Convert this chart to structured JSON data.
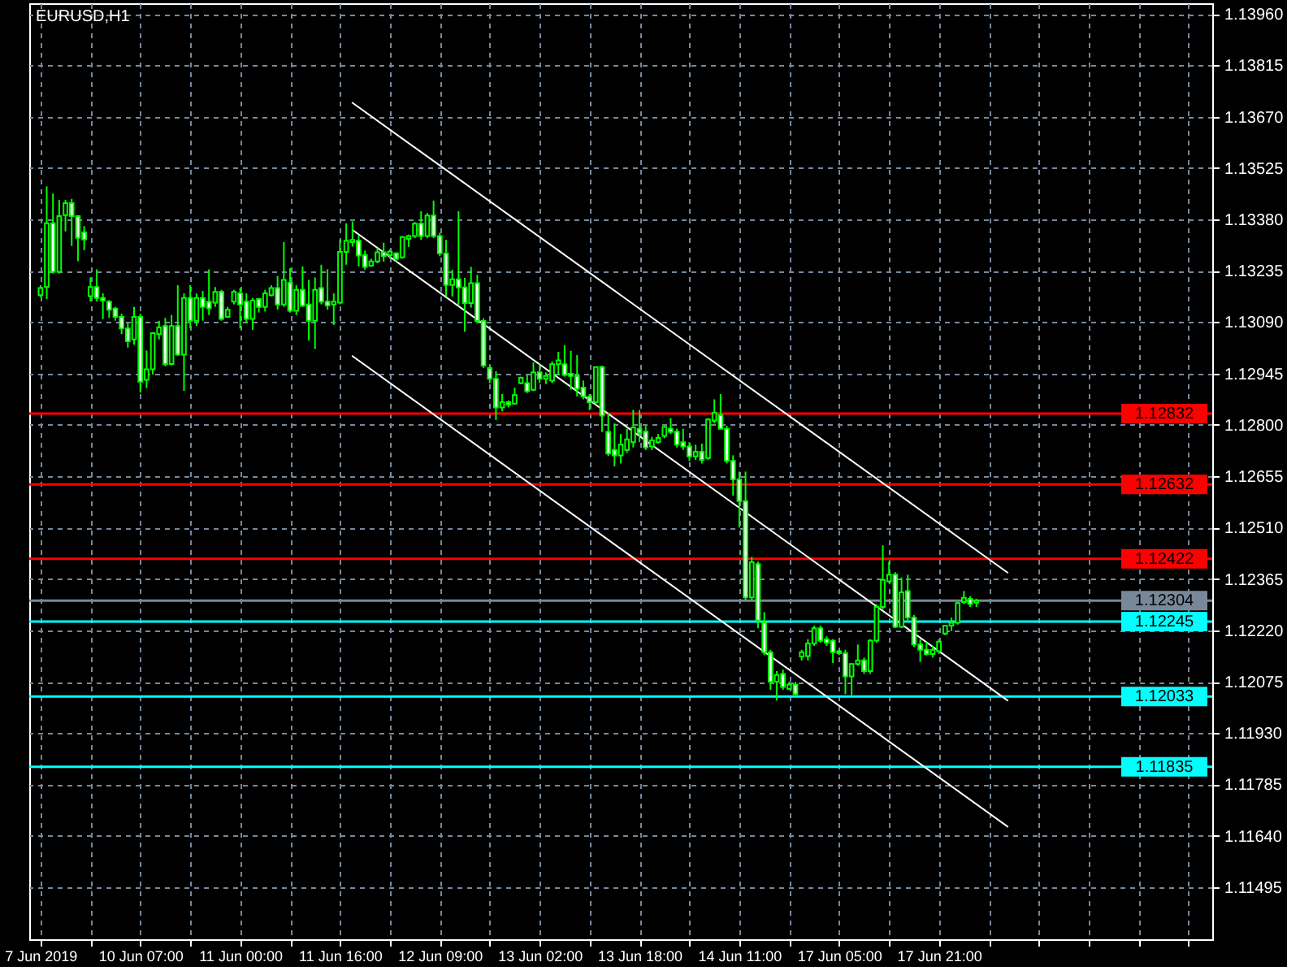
{
  "chart_data": {
    "type": "candlestick",
    "title": "EURUSD,H1",
    "color": "#00ff00",
    "categories": [
      "7 Jun 2019",
      null,
      null,
      null,
      null,
      null,
      null,
      null,
      null,
      null,
      null,
      null,
      null,
      null,
      null,
      null,
      "10 Jun 07:00",
      null,
      null,
      null,
      null,
      null,
      null,
      null,
      null,
      null,
      null,
      null,
      null,
      null,
      null,
      null,
      "11 Jun 00:00",
      null,
      null,
      null,
      null,
      null,
      null,
      null,
      null,
      null,
      null,
      null,
      null,
      null,
      null,
      null,
      "11 Jun 16:00",
      null,
      null,
      null,
      null,
      null,
      null,
      null,
      null,
      null,
      null,
      null,
      null,
      null,
      null,
      null,
      "12 Jun 09:00",
      null,
      null,
      null,
      null,
      null,
      null,
      null,
      null,
      null,
      null,
      null,
      null,
      null,
      null,
      null,
      "13 Jun 02:00",
      null,
      null,
      null,
      null,
      null,
      null,
      null,
      null,
      null,
      null,
      null,
      null,
      null,
      null,
      null,
      "13 Jun 18:00",
      null,
      null,
      null,
      null,
      null,
      null,
      null,
      null,
      null,
      null,
      null,
      null,
      null,
      null,
      null,
      "14 Jun 11:00",
      null,
      null,
      null,
      null,
      null,
      null,
      null,
      null,
      null,
      null,
      null,
      null,
      null,
      null,
      null,
      "17 Jun 05:00",
      null,
      null,
      null,
      null,
      null,
      null,
      null,
      null,
      null,
      null,
      null,
      null,
      null,
      null,
      null,
      "17 Jun 21:00",
      null,
      null,
      null,
      null,
      null,
      null,
      null,
      null,
      null,
      null,
      null,
      null,
      null,
      null,
      null,
      null,
      null,
      null,
      null,
      null,
      null,
      null,
      null,
      null,
      null,
      null,
      null,
      null,
      null,
      null,
      null,
      null,
      null,
      null,
      null,
      null,
      null,
      null,
      null,
      null,
      null,
      null
    ],
    "ohlc": [
      [
        1.13166,
        1.13194,
        1.1316,
        1.13186
      ],
      [
        1.13189,
        1.13473,
        1.13155,
        1.13369
      ],
      [
        1.13369,
        1.13453,
        1.13227,
        1.13232
      ],
      [
        1.13232,
        1.13435,
        1.13227,
        1.13389
      ],
      [
        1.13392,
        1.13435,
        1.13346,
        1.13426
      ],
      [
        1.13426,
        1.13438,
        1.13305,
        1.13389
      ],
      [
        1.13389,
        1.13392,
        1.13262,
        1.13328
      ],
      [
        1.13343,
        1.13361,
        1.13293,
        1.13323
      ],
      [
        1.13163,
        1.13216,
        1.13148,
        1.13189
      ],
      [
        1.13189,
        1.13239,
        1.13148,
        1.13158
      ],
      [
        1.13158,
        1.13171,
        1.13099,
        1.13151
      ],
      [
        1.13148,
        1.13152,
        1.13102,
        1.13125
      ],
      [
        1.13128,
        1.13133,
        1.13094,
        1.13105
      ],
      [
        1.13105,
        1.13114,
        1.13056,
        1.13072
      ],
      [
        1.13072,
        1.13087,
        1.13018,
        1.13036
      ],
      [
        1.13041,
        1.13133,
        1.13026,
        1.13105
      ],
      [
        1.13105,
        1.13114,
        1.12891,
        1.12922
      ],
      [
        1.12927,
        1.1301,
        1.12904,
        1.12957
      ],
      [
        1.12957,
        1.13059,
        1.12942,
        1.13059
      ],
      [
        1.13056,
        1.13094,
        1.13041,
        1.13075
      ],
      [
        1.13079,
        1.13102,
        1.12965,
        1.12972
      ],
      [
        1.12972,
        1.1311,
        1.12968,
        1.13079
      ],
      [
        1.13079,
        1.13194,
        1.12995,
        1.12998
      ],
      [
        1.12998,
        1.13171,
        1.12896,
        1.13158
      ],
      [
        1.13158,
        1.13194,
        1.13072,
        1.13094
      ],
      [
        1.13094,
        1.13171,
        1.13079,
        1.13158
      ],
      [
        1.13158,
        1.13178,
        1.13094,
        1.13133
      ],
      [
        1.13148,
        1.13239,
        1.1311,
        1.13129
      ],
      [
        1.13145,
        1.13189,
        1.13133,
        1.13175
      ],
      [
        1.13175,
        1.13181,
        1.13094,
        1.13099
      ],
      [
        1.13105,
        1.13133,
        1.13102,
        1.13125
      ],
      [
        1.13148,
        1.13181,
        1.1314,
        1.13175
      ],
      [
        1.13171,
        1.13186,
        1.13072,
        1.1314
      ],
      [
        1.13148,
        1.13171,
        1.13087,
        1.13099
      ],
      [
        1.13099,
        1.13158,
        1.13068,
        1.13151
      ],
      [
        1.13155,
        1.13158,
        1.13117,
        1.13133
      ],
      [
        1.13133,
        1.13181,
        1.1312,
        1.13171
      ],
      [
        1.13166,
        1.13194,
        1.13163,
        1.13186
      ],
      [
        1.13186,
        1.1322,
        1.13125,
        1.1314
      ],
      [
        1.1314,
        1.13316,
        1.13133,
        1.13209
      ],
      [
        1.13201,
        1.13242,
        1.13117,
        1.13122
      ],
      [
        1.13122,
        1.13194,
        1.1311,
        1.13181
      ],
      [
        1.13181,
        1.13247,
        1.13133,
        1.13136
      ],
      [
        1.1314,
        1.13209,
        1.13038,
        1.13094
      ],
      [
        1.13094,
        1.13216,
        1.13014,
        1.13181
      ],
      [
        1.13186,
        1.13252,
        1.1314,
        1.13148
      ],
      [
        1.13148,
        1.13239,
        1.13125,
        1.13137
      ],
      [
        1.1314,
        1.13171,
        1.13082,
        1.13148
      ],
      [
        1.13145,
        1.13323,
        1.1314,
        1.13288
      ],
      [
        1.13288,
        1.13369,
        1.13252,
        1.1332
      ],
      [
        1.13316,
        1.13374,
        1.13303,
        1.13322
      ],
      [
        1.1332,
        1.13334,
        1.13247,
        1.13278
      ],
      [
        1.13279,
        1.13292,
        1.13238,
        1.13246
      ],
      [
        1.13249,
        1.13269,
        1.13246,
        1.13261
      ],
      [
        1.13261,
        1.13299,
        1.13256,
        1.13287
      ],
      [
        1.13287,
        1.13314,
        1.13261,
        1.13276
      ],
      [
        1.13279,
        1.13295,
        1.13269,
        1.13289
      ],
      [
        1.13284,
        1.13287,
        1.13261,
        1.13269
      ],
      [
        1.13273,
        1.13333,
        1.13269,
        1.1333
      ],
      [
        1.13325,
        1.13337,
        1.13302,
        1.13333
      ],
      [
        1.13333,
        1.13372,
        1.13327,
        1.13368
      ],
      [
        1.13368,
        1.13403,
        1.13322,
        1.13333
      ],
      [
        1.13333,
        1.13398,
        1.13327,
        1.13391
      ],
      [
        1.13391,
        1.13433,
        1.13327,
        1.13333
      ],
      [
        1.13333,
        1.13342,
        1.13276,
        1.13284
      ],
      [
        1.13284,
        1.13322,
        1.13162,
        1.13195
      ],
      [
        1.13195,
        1.13238,
        1.13162,
        1.13211
      ],
      [
        1.13211,
        1.13403,
        1.13139,
        1.13188
      ],
      [
        1.13188,
        1.13215,
        1.13063,
        1.13144
      ],
      [
        1.13144,
        1.13246,
        1.13131,
        1.132
      ],
      [
        1.132,
        1.13223,
        1.13086,
        1.13093
      ],
      [
        1.13093,
        1.13101,
        1.1296,
        1.12967
      ],
      [
        1.1296,
        1.12971,
        1.12918,
        1.1293
      ],
      [
        1.1293,
        1.12951,
        1.12814,
        1.12849
      ],
      [
        1.12849,
        1.12887,
        1.12838,
        1.12864
      ],
      [
        1.12864,
        1.12869,
        1.12849,
        1.12857
      ],
      [
        1.1286,
        1.12905,
        1.12857,
        1.12884
      ],
      [
        1.12918,
        1.12936,
        1.12915,
        1.12933
      ],
      [
        1.12918,
        1.12941,
        1.1289,
        1.12895
      ],
      [
        1.12899,
        1.12976,
        1.12895,
        1.12948
      ],
      [
        1.12948,
        1.12971,
        1.12918,
        1.1293
      ],
      [
        1.1293,
        1.12948,
        1.12915,
        1.12938
      ],
      [
        1.12925,
        1.12979,
        1.12918,
        1.12971
      ],
      [
        1.12971,
        1.13006,
        1.12941,
        1.12982
      ],
      [
        1.12971,
        1.13025,
        1.12936,
        1.12941
      ],
      [
        1.12944,
        1.13009,
        1.12899,
        1.12938
      ],
      [
        1.12938,
        1.12997,
        1.1288,
        1.12902
      ],
      [
        1.12905,
        1.12925,
        1.12872,
        1.1288
      ],
      [
        1.1288,
        1.12887,
        1.12841,
        1.12864
      ],
      [
        1.12864,
        1.12963,
        1.12857,
        1.12963
      ],
      [
        1.12963,
        1.12967,
        1.1278,
        1.12826
      ],
      [
        1.1278,
        1.12834,
        1.12712,
        1.12719
      ],
      [
        1.12729,
        1.12804,
        1.12683,
        1.12714
      ],
      [
        1.12714,
        1.12774,
        1.12691,
        1.12744
      ],
      [
        1.12729,
        1.12789,
        1.12721,
        1.12759
      ],
      [
        1.12751,
        1.12842,
        1.12736,
        1.12792
      ],
      [
        1.12789,
        1.12842,
        1.12751,
        1.12777
      ],
      [
        1.12781,
        1.12797,
        1.12729,
        1.12736
      ],
      [
        1.12739,
        1.12766,
        1.12729,
        1.12756
      ],
      [
        1.12751,
        1.12774,
        1.12747,
        1.12763
      ],
      [
        1.12769,
        1.12797,
        1.12762,
        1.12794
      ],
      [
        1.12789,
        1.12819,
        1.12774,
        1.1278
      ],
      [
        1.12781,
        1.12789,
        1.12736,
        1.12744
      ],
      [
        1.12751,
        1.12789,
        1.12729,
        1.12739
      ],
      [
        1.12739,
        1.12751,
        1.12698,
        1.12711
      ],
      [
        1.12711,
        1.12744,
        1.12701,
        1.12724
      ],
      [
        1.12724,
        1.12747,
        1.12691,
        1.12701
      ],
      [
        1.12706,
        1.12819,
        1.12701,
        1.12815
      ],
      [
        1.12812,
        1.12872,
        1.12804,
        1.12834
      ],
      [
        1.12827,
        1.12887,
        1.12789,
        1.12789
      ],
      [
        1.12789,
        1.12797,
        1.12691,
        1.12698
      ],
      [
        1.12698,
        1.12714,
        1.126,
        1.12646
      ],
      [
        1.12646,
        1.12668,
        1.1251,
        1.12585
      ],
      [
        1.12585,
        1.12668,
        1.12306,
        1.12313
      ],
      [
        1.12313,
        1.12427,
        1.12306,
        1.12412
      ],
      [
        1.12407,
        1.12414,
        1.12226,
        1.12248
      ],
      [
        1.12241,
        1.12271,
        1.1215,
        1.12158
      ],
      [
        1.12158,
        1.12165,
        1.12052,
        1.12075
      ],
      [
        1.12075,
        1.12105,
        1.12022,
        1.12094
      ],
      [
        1.12097,
        1.12109,
        1.12052,
        1.1206
      ],
      [
        1.12055,
        1.12075,
        1.12052,
        1.12067
      ],
      [
        1.12067,
        1.12075,
        1.12034,
        1.1204
      ],
      [
        1.12146,
        1.12165,
        1.12135,
        1.12158
      ],
      [
        1.12147,
        1.12195,
        1.12135,
        1.12183
      ],
      [
        1.12183,
        1.12233,
        1.12176,
        1.12226
      ],
      [
        1.12226,
        1.12233,
        1.12185,
        1.12191
      ],
      [
        1.12195,
        1.12203,
        1.12176,
        1.12185
      ],
      [
        1.12191,
        1.12195,
        1.12128,
        1.12158
      ],
      [
        1.12161,
        1.12165,
        1.1215,
        1.12155
      ],
      [
        1.12155,
        1.12165,
        1.1204,
        1.1209
      ],
      [
        1.1209,
        1.12128,
        1.12037,
        1.12125
      ],
      [
        1.12125,
        1.1218,
        1.1212,
        1.12135
      ],
      [
        1.12135,
        1.12143,
        1.12097,
        1.12105
      ],
      [
        1.12105,
        1.12195,
        1.12097,
        1.12191
      ],
      [
        1.12191,
        1.12294,
        1.12185,
        1.12286
      ],
      [
        1.12286,
        1.1246,
        1.12279,
        1.12362
      ],
      [
        1.12358,
        1.12414,
        1.12354,
        1.12377
      ],
      [
        1.12377,
        1.12384,
        1.12226,
        1.1223
      ],
      [
        1.1223,
        1.12369,
        1.12226,
        1.12327
      ],
      [
        1.12331,
        1.12377,
        1.12248,
        1.12256
      ],
      [
        1.12256,
        1.12263,
        1.12173,
        1.1218
      ],
      [
        1.1218,
        1.12195,
        1.12131,
        1.12165
      ],
      [
        1.12165,
        1.12188,
        1.12149,
        1.12153
      ],
      [
        1.12153,
        1.12176,
        1.12143,
        1.12165
      ],
      [
        1.12161,
        1.12195,
        1.12153,
        1.12188
      ],
      [
        1.12211,
        1.12233,
        1.12206,
        1.12233
      ],
      [
        1.12233,
        1.12256,
        1.12218,
        1.12241
      ],
      [
        1.12241,
        1.12301,
        1.12236,
        1.12297
      ],
      [
        1.123,
        1.12331,
        1.12294,
        1.12312
      ],
      [
        1.12309,
        1.12316,
        1.12286,
        1.12294
      ],
      [
        1.12298,
        1.12309,
        1.12286,
        1.12304
      ],
      null,
      null,
      null,
      null,
      null,
      null,
      null,
      null,
      null,
      null,
      null,
      null,
      null,
      null,
      null,
      null,
      null,
      null,
      null,
      null,
      null,
      null,
      null,
      null,
      null,
      null,
      null,
      null,
      null,
      null,
      null,
      null,
      null,
      null,
      null,
      null
    ],
    "colors": [
      "#000000",
      "#000000",
      "#ffffff",
      "#000000",
      "#000000",
      "#ffffff",
      "#ffffff",
      "#ffffff",
      "#000000",
      "#ffffff",
      "#ffffff",
      "#ffffff",
      "#ffffff",
      "#ffffff",
      "#ffffff",
      "#000000",
      "#ffffff",
      "#000000",
      "#000000",
      "#000000",
      "#ffffff",
      "#000000",
      "#ffffff",
      "#000000",
      "#ffffff",
      "#000000",
      "#ffffff",
      "#ffffff",
      "#000000",
      "#ffffff",
      "#000000",
      "#000000",
      "#ffffff",
      "#ffffff",
      "#000000",
      "#ffffff",
      "#000000",
      "#000000",
      "#ffffff",
      "#000000",
      "#ffffff",
      "#000000",
      "#ffffff",
      "#ffffff",
      "#000000",
      "#ffffff",
      "#ffffff",
      "#000000",
      "#000000",
      "#000000",
      "#000000",
      "#ffffff",
      "#ffffff",
      "#000000",
      "#000000",
      "#ffffff",
      "#000000",
      "#ffffff",
      "#000000",
      "#000000",
      "#000000",
      "#ffffff",
      "#000000",
      "#ffffff",
      "#ffffff",
      "#ffffff",
      "#000000",
      "#ffffff",
      "#ffffff",
      "#000000",
      "#ffffff",
      "#ffffff",
      "#ffffff",
      "#ffffff",
      "#000000",
      "#ffffff",
      "#000000",
      "#000000",
      "#ffffff",
      "#000000",
      "#ffffff",
      "#000000",
      "#000000",
      "#000000",
      "#ffffff",
      "#ffffff",
      "#ffffff",
      "#ffffff",
      "#ffffff",
      "#000000",
      "#ffffff",
      "#ffffff",
      "#ffffff",
      "#000000",
      "#000000",
      "#000000",
      "#ffffff",
      "#ffffff",
      "#000000",
      "#000000",
      "#000000",
      "#ffffff",
      "#ffffff",
      "#ffffff",
      "#ffffff",
      "#000000",
      "#ffffff",
      "#000000",
      "#000000",
      "#ffffff",
      "#ffffff",
      "#ffffff",
      "#ffffff",
      "#ffffff",
      "#000000",
      "#ffffff",
      "#ffffff",
      "#ffffff",
      "#000000",
      "#ffffff",
      "#000000",
      "#ffffff",
      "#000000",
      "#000000",
      "#000000",
      "#ffffff",
      "#ffffff",
      "#ffffff",
      "#ffffff",
      "#ffffff",
      "#000000",
      "#000000",
      "#ffffff",
      "#000000",
      "#000000",
      "#000000",
      "#000000",
      "#ffffff",
      "#000000",
      "#ffffff",
      "#ffffff",
      "#ffffff",
      "#ffffff",
      "#000000",
      "#000000",
      "#000000",
      "#000000",
      "#000000",
      "#000000",
      "#ffffff",
      "#000000",
      null,
      null,
      null,
      null,
      null,
      null,
      null,
      null,
      null,
      null,
      null,
      null,
      null,
      null,
      null,
      null,
      null,
      null,
      null,
      null,
      null,
      null,
      null,
      null,
      null,
      null,
      null,
      null,
      null,
      null,
      null,
      null,
      null,
      null,
      null,
      null
    ],
    "series": [
      {
        "type": "line",
        "color": "#ffffff",
        "values": [
          null,
          null,
          null,
          null,
          null,
          null,
          null,
          null,
          null,
          null,
          null,
          null,
          null,
          null,
          null,
          null,
          null,
          null,
          null,
          null,
          null,
          null,
          null,
          null,
          null,
          null,
          null,
          null,
          null,
          null,
          null,
          null,
          null,
          null,
          null,
          null,
          null,
          null,
          null,
          null,
          null,
          null,
          null,
          null,
          null,
          null,
          null,
          null,
          null,
          null,
          1.13709,
          null,
          null,
          null,
          null,
          null,
          null,
          null,
          null,
          null,
          null,
          null,
          null,
          null,
          null,
          null,
          null,
          null,
          null,
          null,
          null,
          null,
          null,
          null,
          null,
          null,
          null,
          null,
          null,
          null,
          null,
          null,
          null,
          null,
          null,
          null,
          null,
          null,
          null,
          null,
          null,
          null,
          null,
          null,
          null,
          null,
          null,
          null,
          null,
          null,
          null,
          null,
          null,
          null,
          null,
          null,
          null,
          null,
          null,
          null,
          null,
          null,
          null,
          null,
          null,
          null,
          null,
          null,
          null,
          null,
          null,
          null,
          null,
          null,
          null,
          null,
          null,
          null,
          null,
          null,
          null,
          null,
          null,
          null,
          null,
          null,
          null,
          null,
          null,
          null,
          null,
          null,
          null,
          null,
          null,
          null,
          null,
          null,
          null,
          null,
          null,
          null,
          null,
          null,
          null,
          1.12383,
          null,
          null,
          null,
          null,
          null,
          null,
          null,
          null,
          null,
          null,
          null,
          null,
          null,
          null,
          null,
          null,
          null,
          null,
          null,
          null,
          null,
          null,
          null,
          null,
          null,
          null,
          null,
          null,
          null,
          null,
          null
        ]
      },
      {
        "type": "line",
        "color": "#ffffff",
        "values": [
          null,
          null,
          null,
          null,
          null,
          null,
          null,
          null,
          null,
          null,
          null,
          null,
          null,
          null,
          null,
          null,
          null,
          null,
          null,
          null,
          null,
          null,
          null,
          null,
          null,
          null,
          null,
          null,
          null,
          null,
          null,
          null,
          null,
          null,
          null,
          null,
          null,
          null,
          null,
          null,
          null,
          null,
          null,
          null,
          null,
          null,
          null,
          null,
          null,
          null,
          1.1335,
          null,
          null,
          null,
          null,
          null,
          null,
          null,
          null,
          null,
          null,
          null,
          null,
          null,
          null,
          null,
          null,
          null,
          null,
          null,
          null,
          null,
          null,
          null,
          null,
          null,
          null,
          null,
          null,
          null,
          null,
          null,
          null,
          null,
          null,
          null,
          null,
          null,
          null,
          null,
          null,
          null,
          null,
          null,
          null,
          null,
          null,
          null,
          null,
          null,
          null,
          null,
          null,
          null,
          null,
          null,
          null,
          null,
          null,
          null,
          null,
          null,
          null,
          null,
          null,
          null,
          null,
          null,
          null,
          null,
          null,
          null,
          null,
          null,
          null,
          null,
          null,
          null,
          null,
          null,
          null,
          null,
          null,
          null,
          null,
          null,
          null,
          null,
          null,
          null,
          null,
          null,
          null,
          null,
          null,
          null,
          null,
          null,
          null,
          null,
          null,
          null,
          null,
          null,
          null,
          1.12022,
          null,
          null,
          null,
          null,
          null,
          null,
          null,
          null,
          null,
          null,
          null,
          null,
          null,
          null,
          null,
          null,
          null,
          null,
          null,
          null,
          null,
          null,
          null,
          null,
          null,
          null,
          null,
          null,
          null,
          null,
          null
        ]
      },
      {
        "type": "line",
        "color": "#ffffff",
        "values": [
          null,
          null,
          null,
          null,
          null,
          null,
          null,
          null,
          null,
          null,
          null,
          null,
          null,
          null,
          null,
          null,
          null,
          null,
          null,
          null,
          null,
          null,
          null,
          null,
          null,
          null,
          null,
          null,
          null,
          null,
          null,
          null,
          null,
          null,
          null,
          null,
          null,
          null,
          null,
          null,
          null,
          null,
          null,
          null,
          null,
          null,
          null,
          null,
          null,
          null,
          1.12994,
          null,
          null,
          null,
          null,
          null,
          null,
          null,
          null,
          null,
          null,
          null,
          null,
          null,
          null,
          null,
          null,
          null,
          null,
          null,
          null,
          null,
          null,
          null,
          null,
          null,
          null,
          null,
          null,
          null,
          null,
          null,
          null,
          null,
          null,
          null,
          null,
          null,
          null,
          null,
          null,
          null,
          null,
          null,
          null,
          null,
          null,
          null,
          null,
          null,
          null,
          null,
          null,
          null,
          null,
          null,
          null,
          null,
          null,
          null,
          null,
          null,
          null,
          null,
          null,
          null,
          null,
          null,
          null,
          null,
          null,
          null,
          null,
          null,
          null,
          null,
          null,
          null,
          null,
          null,
          null,
          null,
          null,
          null,
          null,
          null,
          null,
          null,
          null,
          null,
          null,
          null,
          null,
          null,
          null,
          null,
          null,
          null,
          null,
          null,
          null,
          null,
          null,
          null,
          null,
          1.11666,
          null,
          null,
          null,
          null,
          null,
          null,
          null,
          null,
          null,
          null,
          null,
          null,
          null,
          null,
          null,
          null,
          null,
          null,
          null,
          null,
          null,
          null,
          null,
          null,
          null,
          null,
          null,
          null,
          null,
          null,
          null
        ]
      }
    ],
    "ylim": [
      1.11348,
      1.1399
    ],
    "yticks": [
      1.11495,
      {
        "value": 1.1164,
        "label": "1.11640"
      },
      1.11785,
      {
        "value": 1.1193,
        "label": "1.11930"
      },
      1.12075,
      {
        "value": 1.1222,
        "label": "1.12220"
      },
      1.12365,
      {
        "value": 1.1251,
        "label": "1.12510"
      },
      1.12655,
      {
        "value": 1.128,
        "label": "1.12800"
      },
      1.12945,
      {
        "value": 1.1309,
        "label": "1.13090"
      },
      1.13235,
      {
        "value": 1.1338,
        "label": "1.13380"
      },
      1.13525,
      {
        "value": 1.1367,
        "label": "1.13670"
      },
      1.13815,
      {
        "value": 1.1396,
        "label": "1.13960"
      }
    ],
    "ref_lines": [
      {
        "axis": "y",
        "value": 1.12832,
        "label": "1.12832",
        "color": "#ff0000"
      },
      {
        "axis": "y",
        "value": 1.12632,
        "label": "1.12632",
        "color": "#ff0000"
      },
      {
        "axis": "y",
        "value": 1.12422,
        "label": "1.12422",
        "color": "#ff0000"
      },
      {
        "axis": "y",
        "value": 1.12304,
        "label": "1.12304",
        "color": "#778899"
      },
      {
        "axis": "y",
        "value": 1.12245,
        "label": "1.12245",
        "color": "#00ffff"
      },
      {
        "axis": "y",
        "value": 1.12033,
        "label": "1.12033",
        "color": "#00ffff"
      },
      {
        "axis": "y",
        "value": 1.11835,
        "label": "1.11835",
        "color": "#00ffff"
      }
    ],
    "grid": true
  }
}
